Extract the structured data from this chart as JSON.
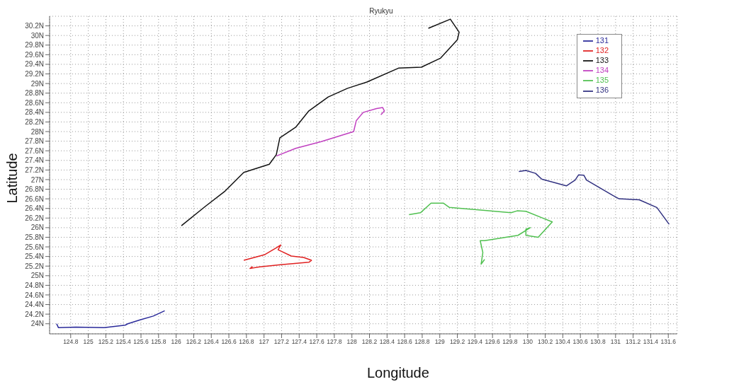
{
  "chart_data": {
    "type": "line",
    "title": "Ryukyu",
    "xlabel": "Longitude",
    "ylabel": "Latitude",
    "xlim": [
      124.56,
      131.7
    ],
    "ylim": [
      23.79,
      30.4
    ],
    "xticks": [
      124.8,
      125,
      125.2,
      125.4,
      125.6,
      125.8,
      126,
      126.2,
      126.4,
      126.6,
      126.8,
      127,
      127.2,
      127.4,
      127.6,
      127.8,
      128,
      128.2,
      128.4,
      128.6,
      128.8,
      129,
      129.2,
      129.4,
      129.6,
      129.8,
      130,
      130.2,
      130.4,
      130.6,
      130.8,
      131,
      131.2,
      131.4,
      131.6
    ],
    "yticks": [
      {
        "value": 24,
        "label": "24N"
      },
      {
        "value": 24.2,
        "label": "24.2N"
      },
      {
        "value": 24.4,
        "label": "24.4N"
      },
      {
        "value": 24.6,
        "label": "24.6N"
      },
      {
        "value": 24.8,
        "label": "24.8N"
      },
      {
        "value": 25,
        "label": "25N"
      },
      {
        "value": 25.2,
        "label": "25.2N"
      },
      {
        "value": 25.4,
        "label": "25.4N"
      },
      {
        "value": 25.6,
        "label": "25.6N"
      },
      {
        "value": 25.8,
        "label": "25.8N"
      },
      {
        "value": 26,
        "label": "26N"
      },
      {
        "value": 26.2,
        "label": "26.2N"
      },
      {
        "value": 26.4,
        "label": "26.4N"
      },
      {
        "value": 26.6,
        "label": "26.6N"
      },
      {
        "value": 26.8,
        "label": "26.8N"
      },
      {
        "value": 27,
        "label": "27N"
      },
      {
        "value": 27.2,
        "label": "27.2N"
      },
      {
        "value": 27.4,
        "label": "27.4N"
      },
      {
        "value": 27.6,
        "label": "27.6N"
      },
      {
        "value": 27.8,
        "label": "27.8N"
      },
      {
        "value": 28,
        "label": "28N"
      },
      {
        "value": 28.2,
        "label": "28.2N"
      },
      {
        "value": 28.4,
        "label": "28.4N"
      },
      {
        "value": 28.6,
        "label": "28.6N"
      },
      {
        "value": 28.8,
        "label": "28.8N"
      },
      {
        "value": 29,
        "label": "29N"
      },
      {
        "value": 29.2,
        "label": "29.2N"
      },
      {
        "value": 29.4,
        "label": "29.4N"
      },
      {
        "value": 29.6,
        "label": "29.6N"
      },
      {
        "value": 29.8,
        "label": "29.8N"
      },
      {
        "value": 30,
        "label": "30N"
      },
      {
        "value": 30.2,
        "label": "30.2N"
      }
    ],
    "grid": true,
    "legend": "top right",
    "marker": "none",
    "line_style": "solid",
    "series": [
      {
        "name": "131",
        "color": "#2a2a9a",
        "x": [
          124.64,
          124.66,
          124.86,
          125.18,
          125.42,
          125.45,
          125.59,
          125.74,
          125.87
        ],
        "values": [
          24.0,
          23.92,
          23.93,
          23.92,
          23.97,
          24.0,
          24.08,
          24.16,
          24.27
        ]
      },
      {
        "name": "132",
        "color": "#e02020",
        "x": [
          126.87,
          126.84,
          126.94,
          127.19,
          127.51,
          127.54,
          127.45,
          127.31,
          127.16,
          127.19,
          127.14,
          127.01,
          126.77
        ],
        "values": [
          25.19,
          25.15,
          25.18,
          25.23,
          25.28,
          25.32,
          25.38,
          25.41,
          25.54,
          25.64,
          25.58,
          25.44,
          25.32
        ]
      },
      {
        "name": "133",
        "color": "#111111",
        "x": [
          126.06,
          126.33,
          126.55,
          126.77,
          127.06,
          127.14,
          127.18,
          127.36,
          127.51,
          127.73,
          127.95,
          128.17,
          128.53,
          128.79,
          129.01,
          129.2,
          129.22,
          129.12,
          128.87
        ],
        "values": [
          26.04,
          26.44,
          26.75,
          27.15,
          27.32,
          27.52,
          27.87,
          28.09,
          28.43,
          28.72,
          28.9,
          29.03,
          29.32,
          29.34,
          29.53,
          29.91,
          30.07,
          30.34,
          30.15
        ]
      },
      {
        "name": "134",
        "color": "#c040c0",
        "x": [
          127.14,
          127.36,
          127.65,
          128.02,
          128.05,
          128.13,
          128.28,
          128.35,
          128.37,
          128.33
        ],
        "values": [
          27.49,
          27.65,
          27.79,
          28.0,
          28.23,
          28.4,
          28.48,
          28.5,
          28.43,
          28.35
        ]
      },
      {
        "name": "135",
        "color": "#50c050",
        "x": [
          128.65,
          128.78,
          128.9,
          129.04,
          129.11,
          129.56,
          129.81,
          129.88,
          129.98,
          130.28,
          130.12,
          129.98,
          129.98,
          130.03,
          129.89,
          129.51,
          129.46,
          129.49,
          129.47,
          129.51
        ],
        "values": [
          26.27,
          26.31,
          26.51,
          26.51,
          26.42,
          26.35,
          26.31,
          26.35,
          26.34,
          26.12,
          25.8,
          25.84,
          25.97,
          26.0,
          25.84,
          25.73,
          25.73,
          25.48,
          25.24,
          25.34
        ]
      },
      {
        "name": "136",
        "color": "#303080",
        "x": [
          129.9,
          129.98,
          130.09,
          130.16,
          130.44,
          130.54,
          130.58,
          130.64,
          130.67,
          130.97,
          131.04,
          131.27,
          131.47,
          131.61
        ],
        "values": [
          27.17,
          27.19,
          27.13,
          27.01,
          26.87,
          26.99,
          27.1,
          27.09,
          26.99,
          26.67,
          26.6,
          26.58,
          26.42,
          26.07
        ]
      }
    ]
  }
}
